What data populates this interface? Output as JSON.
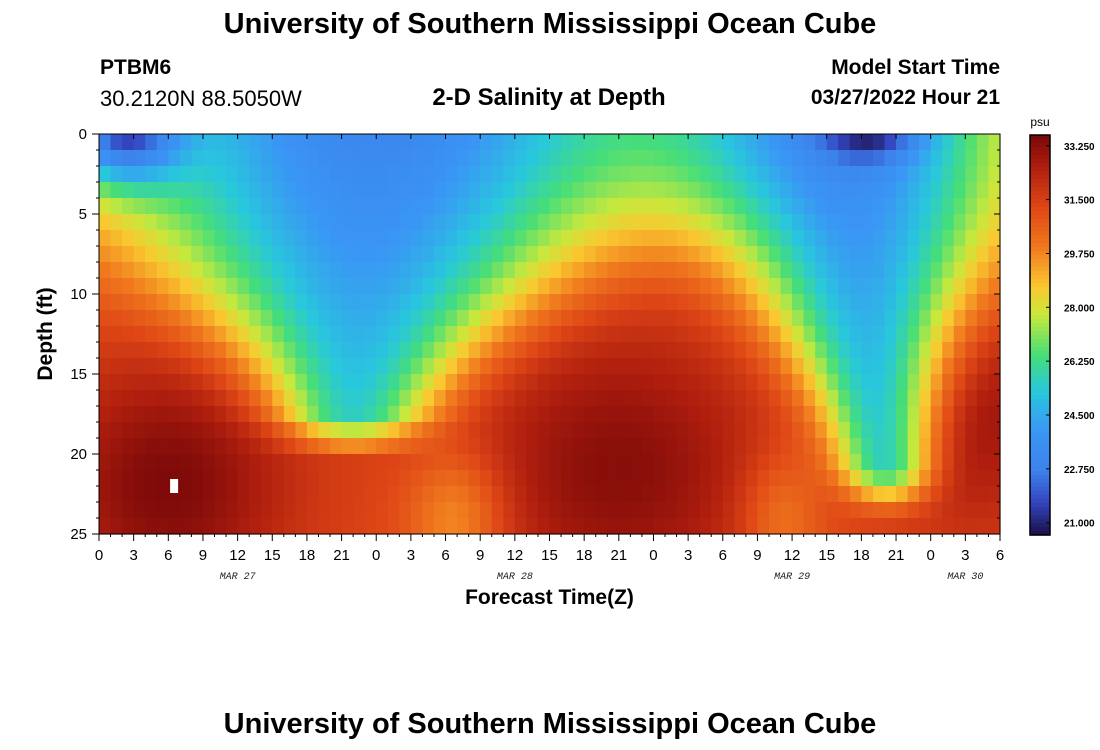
{
  "header": {
    "title": "University of Southern Mississippi Ocean Cube",
    "station": "PTBM6",
    "coordinates": "30.2120N  88.5050W",
    "subtitle": "2-D Salinity at Depth",
    "model_start_label": "Model Start Time",
    "model_start_value": "03/27/2022 Hour 21"
  },
  "footer": {
    "title": "University of Southern Mississippi Ocean Cube"
  },
  "chart_data": {
    "type": "heatmap",
    "title": "2-D Salinity at Depth",
    "xlabel": "Forecast Time(Z)",
    "ylabel": "Depth (ft)",
    "x_range_hours": [
      0,
      78
    ],
    "x_tick_labels": [
      "0",
      "3",
      "6",
      "9",
      "12",
      "15",
      "18",
      "21",
      "0",
      "3",
      "6",
      "9",
      "12",
      "15",
      "18",
      "21",
      "0",
      "3",
      "6",
      "9",
      "12",
      "15",
      "18",
      "21",
      "0",
      "3",
      "6"
    ],
    "x_tick_step_hours": 3,
    "date_labels": [
      {
        "label": "MAR 27",
        "hour": 12
      },
      {
        "label": "MAR 28",
        "hour": 36
      },
      {
        "label": "MAR 29",
        "hour": 60
      },
      {
        "label": "MAR 30",
        "hour": 75
      }
    ],
    "y_range_ft": [
      0,
      25
    ],
    "y_tick_labels": [
      "0",
      "5",
      "10",
      "15",
      "20",
      "25"
    ],
    "y_ticks": [
      0,
      5,
      10,
      15,
      20,
      25
    ],
    "colorbar": {
      "unit": "psu",
      "min": 20.6,
      "max": 33.6,
      "tick_values": [
        33.25,
        31.5,
        29.75,
        28.0,
        26.25,
        24.5,
        22.75,
        21.0
      ],
      "tick_labels": [
        "33.250",
        "31.500",
        "29.750",
        "28.000",
        "26.250",
        "24.500",
        "22.750",
        "21.000"
      ]
    },
    "grid_resolution": {
      "time_step_hours": 1,
      "depth_step_ft": 1
    },
    "features": [
      {
        "description": "fresh (low salinity) surface wedge",
        "center_hour": 24,
        "min_psu": 23.0,
        "max_depth_ft": 16
      },
      {
        "description": "fresh surface wedge",
        "center_hour": 66,
        "min_psu": 22.8,
        "max_depth_ft": 22
      },
      {
        "description": "very fresh surface patch",
        "center_hour": 67,
        "min_psu": 20.8,
        "depth_ft": 0.5
      },
      {
        "description": "saline bottom core",
        "center_hour": 45,
        "max_psu": 33.4,
        "depth_ft": 21
      },
      {
        "description": "saline bottom core",
        "center_hour": 76,
        "max_psu": 33.2,
        "depth_ft": 17
      },
      {
        "description": "saline bottom core",
        "center_hour": 6,
        "max_psu": 33.5,
        "depth_ft": 22
      }
    ],
    "marker": {
      "hour": 6.5,
      "depth_ft": 22
    }
  }
}
